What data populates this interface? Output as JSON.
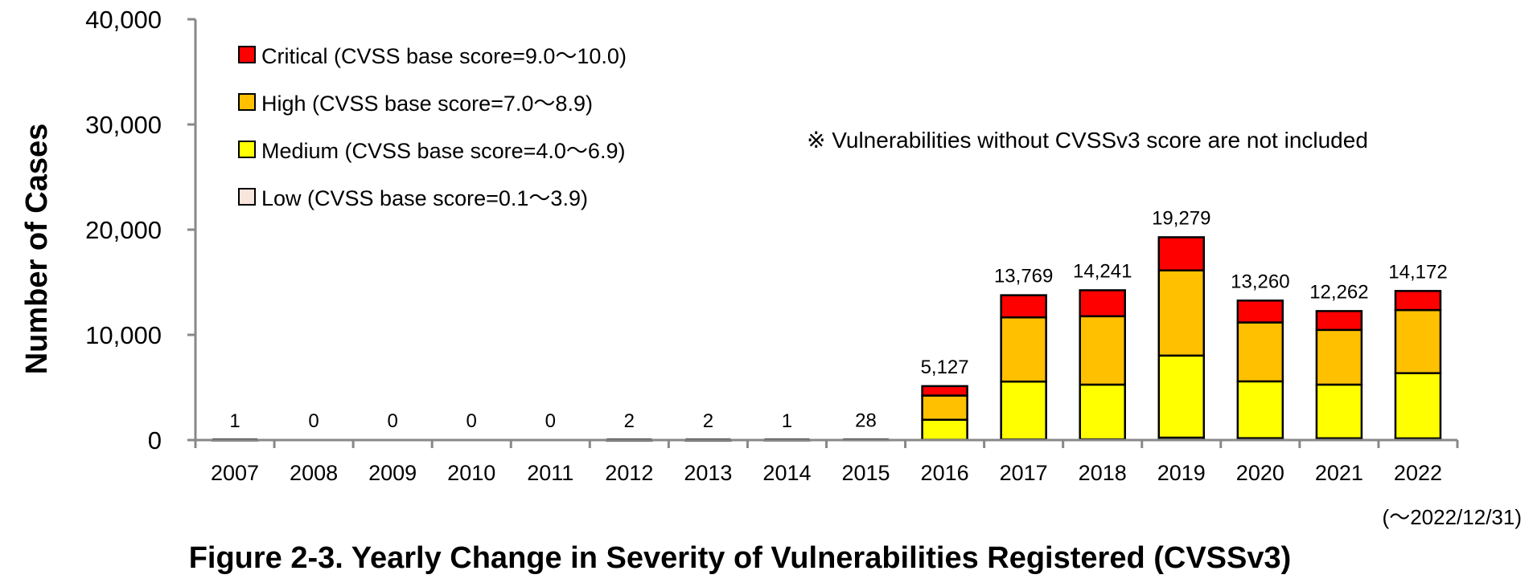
{
  "chart_data": {
    "type": "bar",
    "stacked": true,
    "title": "Figure 2-3. Yearly Change in Severity of Vulnerabilities Registered (CVSSv3)",
    "xlabel": "",
    "ylabel": "Number of Cases",
    "ylim": [
      0,
      40000
    ],
    "yticks": [
      "0",
      "10,000",
      "20,000",
      "30,000",
      "40,000"
    ],
    "ytick_values": [
      0,
      10000,
      20000,
      30000,
      40000
    ],
    "grid": false,
    "legend_position": "top-left",
    "categories": [
      "2007",
      "2008",
      "2009",
      "2010",
      "2011",
      "2012",
      "2013",
      "2014",
      "2015",
      "2016",
      "2017",
      "2018",
      "2019",
      "2020",
      "2021",
      "2022"
    ],
    "series": [
      {
        "name": "Low (CVSS base score=0.1～3.9)",
        "color": "#f8e5dc",
        "values": [
          0,
          0,
          0,
          0,
          0,
          0,
          0,
          0,
          0,
          30,
          60,
          70,
          230,
          180,
          170,
          160
        ]
      },
      {
        "name": "Medium (CVSS base score=4.0～6.9)",
        "color": "#ffff00",
        "values": [
          1,
          0,
          0,
          0,
          0,
          1,
          1,
          1,
          15,
          1900,
          5500,
          5200,
          7800,
          5400,
          5100,
          6200
        ]
      },
      {
        "name": "High (CVSS base score=7.0～8.9)",
        "color": "#ffc000",
        "values": [
          0,
          0,
          0,
          0,
          0,
          1,
          1,
          0,
          10,
          2300,
          6100,
          6500,
          8100,
          5600,
          5200,
          6000
        ]
      },
      {
        "name": "Critical (CVSS base score=9.0～10.0)",
        "color": "#ff0000",
        "values": [
          0,
          0,
          0,
          0,
          0,
          0,
          0,
          0,
          3,
          897,
          2109,
          2471,
          3149,
          2080,
          1792,
          1812
        ]
      }
    ],
    "totals": [
      1,
      0,
      0,
      0,
      0,
      2,
      2,
      1,
      28,
      5127,
      13769,
      14241,
      19279,
      13260,
      12262,
      14172
    ],
    "total_labels": [
      "1",
      "0",
      "0",
      "0",
      "0",
      "2",
      "2",
      "1",
      "28",
      "5,127",
      "13,769",
      "14,241",
      "19,279",
      "13,260",
      "12,262",
      "14,172"
    ],
    "legend_order": [
      3,
      2,
      1,
      0
    ],
    "annotation": "※ Vulnerabilities without CVSSv3 score are not included",
    "period_note": "(～2022/12/31)"
  }
}
